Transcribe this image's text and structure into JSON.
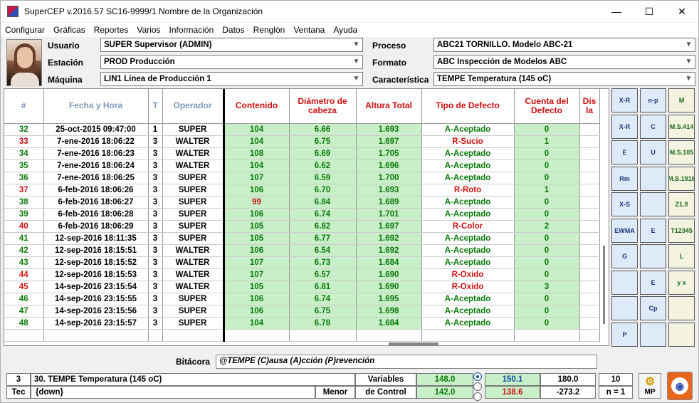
{
  "window": {
    "title": "SuperCEP v.2016.57  SC16-9999/1  Nombre de la Organización",
    "minimize": "—",
    "maximize": "☐",
    "close": "✕"
  },
  "menu": [
    "Configurar",
    "Gráficas",
    "Reportes",
    "Varios",
    "Información",
    "Datos",
    "Renglón",
    "Ventana",
    "Ayuda"
  ],
  "fields": {
    "usuario_label": "Usuario",
    "usuario": "SUPER  Supervisor (ADMIN)",
    "estacion_label": "Estación",
    "estacion": "PROD  Producción",
    "maquina_label": "Máquina",
    "maquina": "LIN1  Línea de Producción 1",
    "proceso_label": "Proceso",
    "proceso": "ABC21  TORNILLO. Modelo ABC-21",
    "formato_label": "Formato",
    "formato": "ABC  Inspección de Modelos ABC",
    "caracteristica_label": "Característica",
    "caracteristica": "TEMPE  Temperatura (145 oC)"
  },
  "grid": {
    "headers": [
      "#",
      "Fecha y Hora",
      "T",
      "Operador",
      "Contenido",
      "Diámetro de cabeza",
      "Altura Total",
      "Tipo de Defecto",
      "Cuenta del Defecto",
      "Dis la"
    ],
    "rows": [
      {
        "n": "32",
        "fecha": "25-oct-2015  09:47:00",
        "t": "1",
        "op": "SUPER",
        "cont": "104",
        "diam": "6.66",
        "alt": "1.693",
        "tipo": "A-Aceptado",
        "cta": "0"
      },
      {
        "n": "33",
        "fecha": "7-ene-2016  18:06:22",
        "t": "3",
        "op": "WALTER",
        "cont": "104",
        "diam": "6.75",
        "alt": "1.697",
        "tipo": "R-Sucio",
        "cta": "1"
      },
      {
        "n": "34",
        "fecha": "7-ene-2016  18:06:23",
        "t": "3",
        "op": "WALTER",
        "cont": "108",
        "diam": "6.69",
        "alt": "1.705",
        "tipo": "A-Aceptado",
        "cta": "0"
      },
      {
        "n": "35",
        "fecha": "7-ene-2016  18:06:24",
        "t": "3",
        "op": "WALTER",
        "cont": "104",
        "diam": "6.62",
        "alt": "1.696",
        "tipo": "A-Aceptado",
        "cta": "0"
      },
      {
        "n": "36",
        "fecha": "7-ene-2016  18:06:25",
        "t": "3",
        "op": "SUPER",
        "cont": "107",
        "diam": "6.59",
        "alt": "1.700",
        "tipo": "A-Aceptado",
        "cta": "0"
      },
      {
        "n": "37",
        "fecha": "6-feb-2016  18:06:26",
        "t": "3",
        "op": "SUPER",
        "cont": "106",
        "diam": "6.70",
        "alt": "1.693",
        "tipo": "R-Roto",
        "cta": "1"
      },
      {
        "n": "38",
        "fecha": "6-feb-2016  18:06:27",
        "t": "3",
        "op": "SUPER",
        "cont": "99",
        "diam": "6.84",
        "alt": "1.689",
        "tipo": "A-Aceptado",
        "cta": "0"
      },
      {
        "n": "39",
        "fecha": "6-feb-2016  18:06:28",
        "t": "3",
        "op": "SUPER",
        "cont": "106",
        "diam": "6.74",
        "alt": "1.701",
        "tipo": "A-Aceptado",
        "cta": "0"
      },
      {
        "n": "40",
        "fecha": "6-feb-2016  18:06:29",
        "t": "3",
        "op": "SUPER",
        "cont": "105",
        "diam": "6.82",
        "alt": "1.697",
        "tipo": "R-Color",
        "cta": "2"
      },
      {
        "n": "41",
        "fecha": "12-sep-2016  18:11:35",
        "t": "3",
        "op": "SUPER",
        "cont": "105",
        "diam": "6.77",
        "alt": "1.692",
        "tipo": "A-Aceptado",
        "cta": "0"
      },
      {
        "n": "42",
        "fecha": "12-sep-2016  18:15:51",
        "t": "3",
        "op": "WALTER",
        "cont": "106",
        "diam": "6.54",
        "alt": "1.692",
        "tipo": "A-Aceptado",
        "cta": "0"
      },
      {
        "n": "43",
        "fecha": "12-sep-2016  18:15:52",
        "t": "3",
        "op": "WALTER",
        "cont": "107",
        "diam": "6.73",
        "alt": "1.684",
        "tipo": "A-Aceptado",
        "cta": "0"
      },
      {
        "n": "44",
        "fecha": "12-sep-2016  18:15:53",
        "t": "3",
        "op": "WALTER",
        "cont": "107",
        "diam": "6.57",
        "alt": "1.690",
        "tipo": "R-Oxido",
        "cta": "0"
      },
      {
        "n": "45",
        "fecha": "14-sep-2016  23:15:54",
        "t": "3",
        "op": "WALTER",
        "cont": "105",
        "diam": "6.81",
        "alt": "1.690",
        "tipo": "R-Oxido",
        "cta": "3"
      },
      {
        "n": "46",
        "fecha": "14-sep-2016  23:15:55",
        "t": "3",
        "op": "SUPER",
        "cont": "106",
        "diam": "6.74",
        "alt": "1.695",
        "tipo": "A-Aceptado",
        "cta": "0"
      },
      {
        "n": "47",
        "fecha": "14-sep-2016  23:15:56",
        "t": "3",
        "op": "SUPER",
        "cont": "106",
        "diam": "6.75",
        "alt": "1.698",
        "tipo": "A-Aceptado",
        "cta": "0"
      },
      {
        "n": "48",
        "fecha": "14-sep-2016  23:15:57",
        "t": "3",
        "op": "SUPER",
        "cont": "104",
        "diam": "6.78",
        "alt": "1.684",
        "tipo": "A-Aceptado",
        "cta": "0"
      }
    ]
  },
  "toolbar": [
    {
      "icon": "xbar-r-chart-icon",
      "text": "X-R"
    },
    {
      "icon": "n-p-chart-icon",
      "text": "n-p"
    },
    {
      "icon": "histogram-m-icon",
      "text": "M"
    },
    {
      "icon": "xbar-r-table-icon",
      "text": "X-R"
    },
    {
      "icon": "c-chart-icon",
      "text": "C"
    },
    {
      "icon": "ms414-icon",
      "text": "M.S.414"
    },
    {
      "icon": "e-table-icon",
      "text": "E"
    },
    {
      "icon": "u-chart-icon",
      "text": "U"
    },
    {
      "icon": "ms105-icon",
      "text": "M.S.105"
    },
    {
      "icon": "x-rm-r-icon",
      "text": "Rm"
    },
    {
      "icon": "normal-curve-icon",
      "text": ""
    },
    {
      "icon": "ms1916-icon",
      "text": "M.S.1916"
    },
    {
      "icon": "x-s-chart-icon",
      "text": "X-S"
    },
    {
      "icon": "bar-chart-icon",
      "text": ""
    },
    {
      "icon": "z19-icon",
      "text": "Z1.9"
    },
    {
      "icon": "ewma-icon",
      "text": "EWMA"
    },
    {
      "icon": "e-chart-icon",
      "text": "E"
    },
    {
      "icon": "t12345-icon",
      "text": "T12345"
    },
    {
      "icon": "g-chart-icon",
      "text": "G"
    },
    {
      "icon": "blocks-icon",
      "text": ""
    },
    {
      "icon": "l-chart-icon",
      "text": "L"
    },
    {
      "icon": "limits-icon",
      "text": ""
    },
    {
      "icon": "e-blocks-icon",
      "text": "E"
    },
    {
      "icon": "y-x-icon",
      "text": "y x"
    },
    {
      "icon": "rainbow-icon",
      "text": ""
    },
    {
      "icon": "cp-icon",
      "text": "Cp"
    },
    {
      "icon": "scatter-icon",
      "text": ""
    },
    {
      "icon": "p-chart-icon",
      "text": "P"
    },
    {
      "icon": "tolerance-icon",
      "text": ""
    },
    {
      "icon": "camera-icon",
      "text": ""
    }
  ],
  "bitacora": {
    "label": "Bitácora",
    "text": "@TEMPE (C)ausa (A)cción (P)revención"
  },
  "footer": {
    "col_index": "3",
    "char_name": "30. TEMPE  Temperatura (145 oC)",
    "tec_label": "Tec",
    "tec_value": "{down}",
    "menor_label": "Menor",
    "variables_label": "Variables",
    "control_label": "de Control",
    "v1": "148.0",
    "v2": "150.1",
    "v3": "180.0",
    "c1": "142.0",
    "c2": "138.6",
    "c3": "-273.2",
    "count": "10",
    "n_label": "n = 1",
    "mp_label": "MP",
    "colors": {
      "green": "#c9efc9",
      "blue": "#0d4fa0",
      "red": "#d01010"
    }
  }
}
